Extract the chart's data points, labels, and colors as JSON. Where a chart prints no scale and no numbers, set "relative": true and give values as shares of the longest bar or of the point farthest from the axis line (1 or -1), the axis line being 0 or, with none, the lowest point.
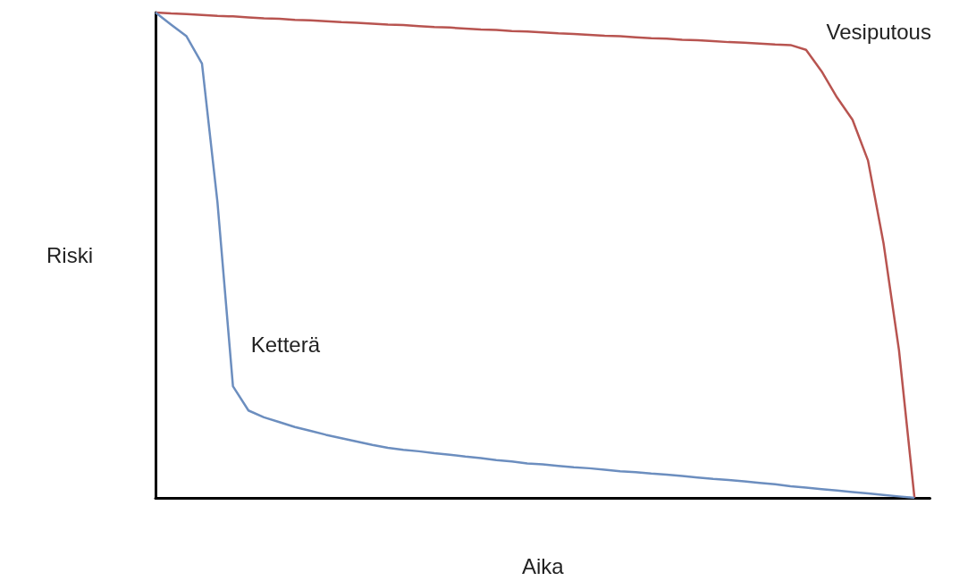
{
  "chart_data": {
    "type": "line",
    "xlabel": "Aika",
    "ylabel": "Riski",
    "relative": true,
    "categories": [
      null,
      null,
      null,
      null,
      null,
      null,
      null,
      null,
      null,
      null,
      null,
      null,
      null,
      null,
      null,
      null,
      null,
      null,
      null,
      null,
      null,
      null,
      null,
      null,
      null,
      null,
      null,
      null,
      null,
      null,
      null,
      null,
      null,
      null,
      null,
      null,
      null,
      null,
      null,
      null,
      null,
      null,
      null,
      null,
      null,
      null,
      null,
      null,
      null,
      null,
      null
    ],
    "series": [
      {
        "name": "Vesiputous",
        "color": "#b85450",
        "values": [
          1.0,
          0.998,
          0.997,
          0.995,
          0.993,
          0.992,
          0.99,
          0.988,
          0.987,
          0.985,
          0.984,
          0.982,
          0.98,
          0.979,
          0.977,
          0.975,
          0.974,
          0.972,
          0.97,
          0.969,
          0.967,
          0.965,
          0.964,
          0.962,
          0.961,
          0.959,
          0.957,
          0.956,
          0.954,
          0.952,
          0.951,
          0.949,
          0.947,
          0.946,
          0.944,
          0.943,
          0.941,
          0.939,
          0.938,
          0.936,
          0.934,
          0.933,
          0.923,
          0.879,
          0.825,
          0.779,
          0.695,
          0.525,
          0.304,
          0.0,
          null
        ]
      },
      {
        "name": "Ketterä",
        "color": "#6c8ebf",
        "values": [
          1.0,
          0.975,
          0.951,
          0.895,
          0.609,
          0.23,
          0.18,
          0.166,
          0.156,
          0.146,
          0.138,
          0.13,
          0.123,
          0.116,
          0.109,
          0.103,
          0.099,
          0.096,
          0.092,
          0.089,
          0.085,
          0.082,
          0.078,
          0.075,
          0.071,
          0.069,
          0.066,
          0.063,
          0.061,
          0.058,
          0.055,
          0.053,
          0.05,
          0.048,
          0.045,
          0.042,
          0.039,
          0.037,
          0.034,
          0.031,
          0.028,
          0.024,
          0.021,
          0.018,
          0.015,
          0.012,
          0.009,
          0.006,
          0.003,
          0.0,
          null
        ]
      }
    ]
  }
}
